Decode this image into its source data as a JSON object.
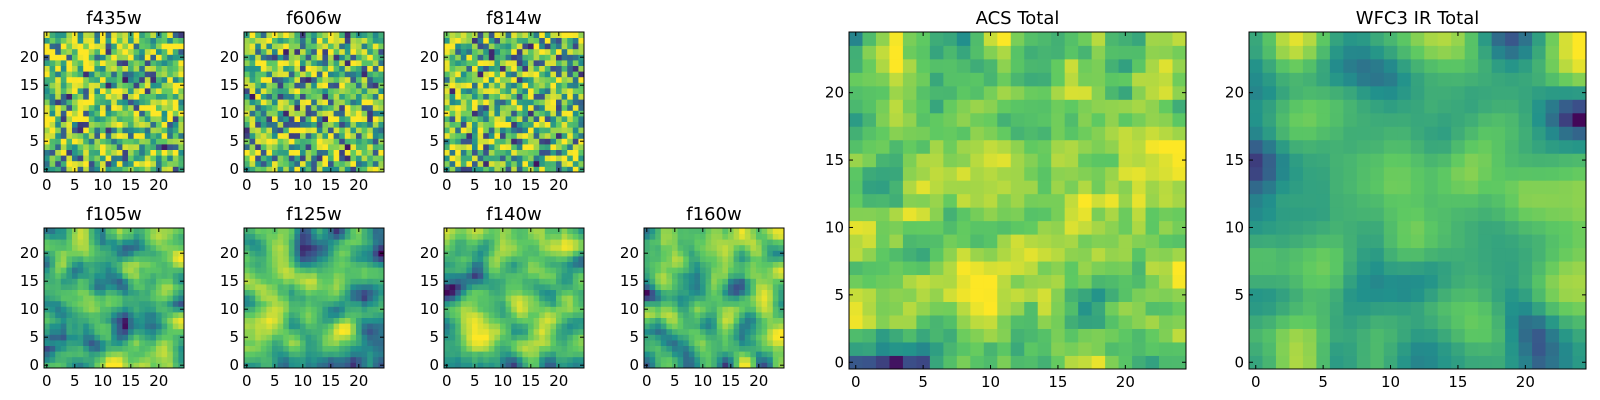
{
  "figure": {
    "colormap": "viridis",
    "colormap_stops": [
      "#440154",
      "#3b528b",
      "#21918c",
      "#5ec962",
      "#fde725"
    ]
  },
  "chart_data": [
    {
      "type": "heatmap",
      "title": "f435w",
      "grid": [
        25,
        25
      ],
      "xlim": [
        0,
        24
      ],
      "ylim": [
        0,
        24
      ],
      "xticks": [
        "0",
        "5",
        "10",
        "15",
        "20"
      ],
      "yticks": [
        "0",
        "5",
        "10",
        "15",
        "20"
      ],
      "value_range": [
        0,
        1
      ],
      "seed": 11,
      "smoothing": 0,
      "bias": 0.08
    },
    {
      "type": "heatmap",
      "title": "f606w",
      "grid": [
        25,
        25
      ],
      "xlim": [
        0,
        24
      ],
      "ylim": [
        0,
        24
      ],
      "xticks": [
        "0",
        "5",
        "10",
        "15",
        "20"
      ],
      "yticks": [
        "0",
        "5",
        "10",
        "15",
        "20"
      ],
      "value_range": [
        0,
        1
      ],
      "seed": 23,
      "smoothing": 0,
      "bias": 0.06
    },
    {
      "type": "heatmap",
      "title": "f814w",
      "grid": [
        25,
        25
      ],
      "xlim": [
        0,
        24
      ],
      "ylim": [
        0,
        24
      ],
      "xticks": [
        "0",
        "5",
        "10",
        "15",
        "20"
      ],
      "yticks": [
        "0",
        "5",
        "10",
        "15",
        "20"
      ],
      "value_range": [
        0,
        1
      ],
      "seed": 37,
      "smoothing": 0,
      "bias": 0.06
    },
    {
      "type": "heatmap",
      "title": "f105w",
      "grid": [
        25,
        25
      ],
      "xlim": [
        0,
        24
      ],
      "ylim": [
        0,
        24
      ],
      "xticks": [
        "0",
        "5",
        "10",
        "15",
        "20"
      ],
      "yticks": [
        "0",
        "5",
        "10",
        "15",
        "20"
      ],
      "value_range": [
        0,
        1
      ],
      "seed": 41,
      "smoothing": 2,
      "bias": 0.04
    },
    {
      "type": "heatmap",
      "title": "f125w",
      "grid": [
        25,
        25
      ],
      "xlim": [
        0,
        24
      ],
      "ylim": [
        0,
        24
      ],
      "xticks": [
        "0",
        "5",
        "10",
        "15",
        "20"
      ],
      "yticks": [
        "0",
        "5",
        "10",
        "15",
        "20"
      ],
      "value_range": [
        0,
        1
      ],
      "seed": 53,
      "smoothing": 2,
      "bias": 0.0
    },
    {
      "type": "heatmap",
      "title": "f140w",
      "grid": [
        25,
        25
      ],
      "xlim": [
        0,
        24
      ],
      "ylim": [
        0,
        24
      ],
      "xticks": [
        "0",
        "5",
        "10",
        "15",
        "20"
      ],
      "yticks": [
        "0",
        "5",
        "10",
        "15",
        "20"
      ],
      "value_range": [
        0,
        1
      ],
      "seed": 67,
      "smoothing": 2,
      "bias": 0.02
    },
    {
      "type": "heatmap",
      "title": "f160w",
      "grid": [
        25,
        25
      ],
      "xlim": [
        0,
        24
      ],
      "ylim": [
        0,
        24
      ],
      "xticks": [
        "0",
        "5",
        "10",
        "15",
        "20"
      ],
      "yticks": [
        "0",
        "5",
        "10",
        "15",
        "20"
      ],
      "value_range": [
        0,
        1
      ],
      "seed": 79,
      "smoothing": 2,
      "bias": 0.02
    },
    {
      "type": "heatmap",
      "title": "ACS Total",
      "grid": [
        25,
        25
      ],
      "xlim": [
        0,
        24
      ],
      "ylim": [
        0,
        24
      ],
      "xticks": [
        "0",
        "5",
        "10",
        "15",
        "20"
      ],
      "yticks": [
        "0",
        "5",
        "10",
        "15",
        "20"
      ],
      "value_range": [
        0,
        1
      ],
      "seed": 97,
      "smoothing": 1,
      "bias": 0.06
    },
    {
      "type": "heatmap",
      "title": "WFC3 IR Total",
      "grid": [
        25,
        25
      ],
      "xlim": [
        0,
        24
      ],
      "ylim": [
        0,
        24
      ],
      "xticks": [
        "0",
        "5",
        "10",
        "15",
        "20"
      ],
      "yticks": [
        "0",
        "5",
        "10",
        "15",
        "20"
      ],
      "value_range": [
        0,
        1
      ],
      "seed": 113,
      "smoothing": 3,
      "bias": 0.02
    }
  ]
}
